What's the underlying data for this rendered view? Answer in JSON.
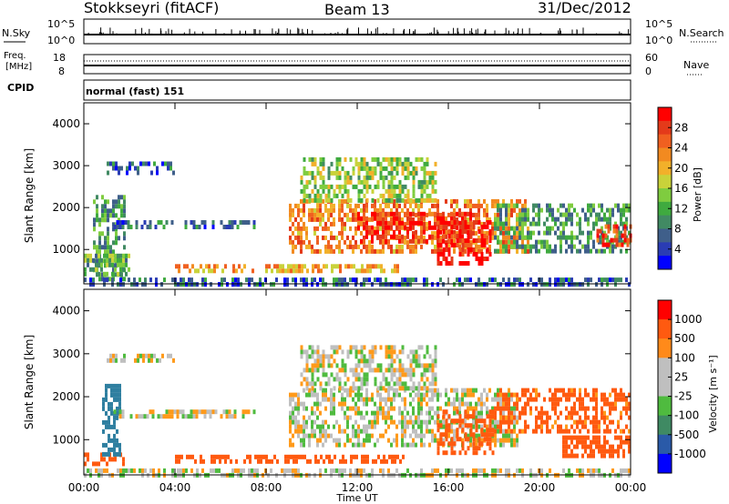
{
  "header": {
    "station": "Stokkseyri (fitACF)",
    "beam": "Beam 13",
    "date": "31/Dec/2012"
  },
  "top_panel": {
    "left_label": "N.Sky",
    "left_top": "10^5",
    "left_bottom": "10^0",
    "right_top": "10^5",
    "right_bottom": "10^0",
    "right_label": "N.Search"
  },
  "freq_panel": {
    "left_label_1": "Freq.",
    "left_label_2": "[MHz]",
    "left_top": "18",
    "left_bottom": "8",
    "right_top": "60",
    "right_bottom": "0",
    "right_label": "Nave",
    "cpid_label": "CPID",
    "cpid_value": "normal (fast) 151"
  },
  "colorbars": {
    "power": {
      "label": "Power [dB]",
      "ticks": [
        "28",
        "24",
        "20",
        "16",
        "12",
        "8",
        "4"
      ],
      "colors": [
        "#0000ff",
        "#2a3cb4",
        "#3f5f8a",
        "#418a63",
        "#3faa3f",
        "#7fcc3f",
        "#c9d23a",
        "#f2b02a",
        "#f28a20",
        "#f06020",
        "#e43a1a",
        "#ff0000"
      ]
    },
    "velocity": {
      "label": "Velocity [m s⁻¹]",
      "ticks": [
        "1000",
        "500",
        "100",
        "25",
        "-25",
        "-100",
        "-500",
        "-1000"
      ],
      "colors": [
        "#0000ff",
        "#2a5aa8",
        "#3f8a63",
        "#4fbb3f",
        "#bfbfbf",
        "#bfbfbf",
        "#ff8a1a",
        "#ff5a10",
        "#ff0000"
      ]
    }
  },
  "chart_data": [
    {
      "type": "heatmap",
      "panel": "power",
      "ylabel": "Slant Range [km]",
      "xlabel": "Time UT",
      "ylim": [
        180,
        4500
      ],
      "xlim": [
        "00:00",
        "24:00"
      ],
      "x_ticks": [
        "00:00",
        "04:00",
        "08:00",
        "12:00",
        "16:00",
        "20:00",
        "00:00"
      ],
      "y_ticks": [
        "1000",
        "2000",
        "3000",
        "4000"
      ],
      "scale_label": "Power [dB]",
      "scale_range": [
        0,
        30
      ],
      "regions": [
        {
          "t0": 0.4,
          "t1": 1.8,
          "r0": 300,
          "r1": 2300,
          "value": 10
        },
        {
          "t0": 1.0,
          "t1": 4.0,
          "r0": 2800,
          "r1": 3100,
          "value": 6
        },
        {
          "t0": 1.3,
          "t1": 7.5,
          "r0": 1550,
          "r1": 1700,
          "value": 6
        },
        {
          "t0": 0.0,
          "t1": 2.0,
          "r0": 400,
          "r1": 900,
          "value": 12
        },
        {
          "t0": 4.0,
          "t1": 14.0,
          "r0": 450,
          "r1": 650,
          "value": 20
        },
        {
          "t0": 9.0,
          "t1": 19.5,
          "r0": 900,
          "r1": 2200,
          "value": 22
        },
        {
          "t0": 12.0,
          "t1": 17.0,
          "r0": 1200,
          "r1": 1900,
          "value": 27
        },
        {
          "t0": 15.5,
          "t1": 17.8,
          "r0": 700,
          "r1": 1700,
          "value": 28
        },
        {
          "t0": 18.0,
          "t1": 24.0,
          "r0": 1000,
          "r1": 2100,
          "value": 10
        },
        {
          "t0": 22.5,
          "t1": 24.0,
          "r0": 1100,
          "r1": 1600,
          "value": 26
        },
        {
          "t0": 9.5,
          "t1": 15.5,
          "r0": 2200,
          "r1": 3200,
          "value": 14
        },
        {
          "t0": 0.0,
          "t1": 24.0,
          "r0": 180,
          "r1": 330,
          "value": 6
        }
      ]
    },
    {
      "type": "heatmap",
      "panel": "velocity",
      "ylabel": "Slant Range [km]",
      "xlabel": "Time UT",
      "ylim": [
        180,
        4500
      ],
      "xlim": [
        "00:00",
        "24:00"
      ],
      "x_ticks": [
        "00:00",
        "04:00",
        "08:00",
        "12:00",
        "16:00",
        "20:00",
        "00:00"
      ],
      "y_ticks": [
        "1000",
        "2000",
        "3000",
        "4000"
      ],
      "scale_label": "Velocity [m s⁻¹]",
      "regions": [
        {
          "t0": 0.0,
          "t1": 1.8,
          "r0": 450,
          "r1": 700,
          "value": -400
        },
        {
          "t0": 0.8,
          "t1": 1.6,
          "r0": 700,
          "r1": 2300,
          "value": 300
        },
        {
          "t0": 1.0,
          "t1": 4.0,
          "r0": 2800,
          "r1": 3000,
          "value": 0
        },
        {
          "t0": 1.3,
          "t1": 7.5,
          "r0": 1550,
          "r1": 1700,
          "value": 0
        },
        {
          "t0": 4.0,
          "t1": 14.0,
          "r0": 450,
          "r1": 650,
          "value": -200
        },
        {
          "t0": 9.0,
          "t1": 19.0,
          "r0": 900,
          "r1": 2200,
          "value": 0
        },
        {
          "t0": 15.5,
          "t1": 18.0,
          "r0": 700,
          "r1": 1700,
          "value": -300
        },
        {
          "t0": 18.0,
          "t1": 24.0,
          "r0": 1200,
          "r1": 2200,
          "value": -150
        },
        {
          "t0": 21.0,
          "t1": 24.0,
          "r0": 600,
          "r1": 1100,
          "value": -300
        },
        {
          "t0": 9.5,
          "t1": 15.5,
          "r0": 2200,
          "r1": 3200,
          "value": 0
        },
        {
          "t0": 0.0,
          "t1": 24.0,
          "r0": 180,
          "r1": 330,
          "value": 0
        }
      ]
    }
  ]
}
